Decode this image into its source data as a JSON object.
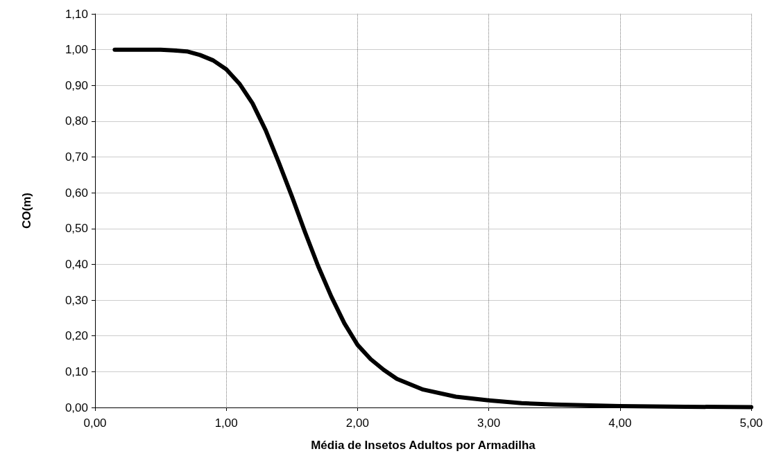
{
  "chart_data": {
    "type": "line",
    "xlabel": "Média de Insetos Adultos por Armadilha",
    "ylabel": "CO(m)",
    "x": [
      0.15,
      0.3,
      0.5,
      0.6,
      0.7,
      0.8,
      0.9,
      1.0,
      1.1,
      1.2,
      1.3,
      1.4,
      1.5,
      1.6,
      1.7,
      1.8,
      1.9,
      2.0,
      2.1,
      2.2,
      2.3,
      2.4,
      2.5,
      2.75,
      3.0,
      3.25,
      3.5,
      4.0,
      4.5,
      5.0
    ],
    "series": [
      {
        "color": "#000000",
        "values": [
          1.0,
          1.0,
          1.0,
          0.998,
          0.995,
          0.985,
          0.97,
          0.945,
          0.905,
          0.85,
          0.775,
          0.685,
          0.59,
          0.49,
          0.395,
          0.31,
          0.235,
          0.175,
          0.135,
          0.105,
          0.08,
          0.065,
          0.05,
          0.03,
          0.02,
          0.012,
          0.008,
          0.004,
          0.002,
          0.001
        ]
      }
    ],
    "xlim": [
      0,
      5
    ],
    "xticks": [
      {
        "value": 0,
        "label": "0,00"
      },
      {
        "value": 1,
        "label": "1,00"
      },
      {
        "value": 2,
        "label": "2,00"
      },
      {
        "value": 3,
        "label": "3,00"
      },
      {
        "value": 4,
        "label": "4,00"
      },
      {
        "value": 5,
        "label": "5,00"
      }
    ],
    "ylim": [
      0,
      1.1
    ],
    "yticks": [
      {
        "value": 0,
        "label": "0,00"
      },
      {
        "value": 0.1,
        "label": "0,10"
      },
      {
        "value": 0.2,
        "label": "0,20"
      },
      {
        "value": 0.3,
        "label": "0,30"
      },
      {
        "value": 0.4,
        "label": "0,40"
      },
      {
        "value": 0.5,
        "label": "0,50"
      },
      {
        "value": 0.6,
        "label": "0,60"
      },
      {
        "value": 0.7,
        "label": "0,70"
      },
      {
        "value": 0.8,
        "label": "0,80"
      },
      {
        "value": 0.9,
        "label": "0,90"
      },
      {
        "value": 1.0,
        "label": "1,00"
      },
      {
        "value": 1.1,
        "label": "1,10"
      }
    ],
    "grid": true,
    "marker": "none",
    "line_style": "solid"
  }
}
